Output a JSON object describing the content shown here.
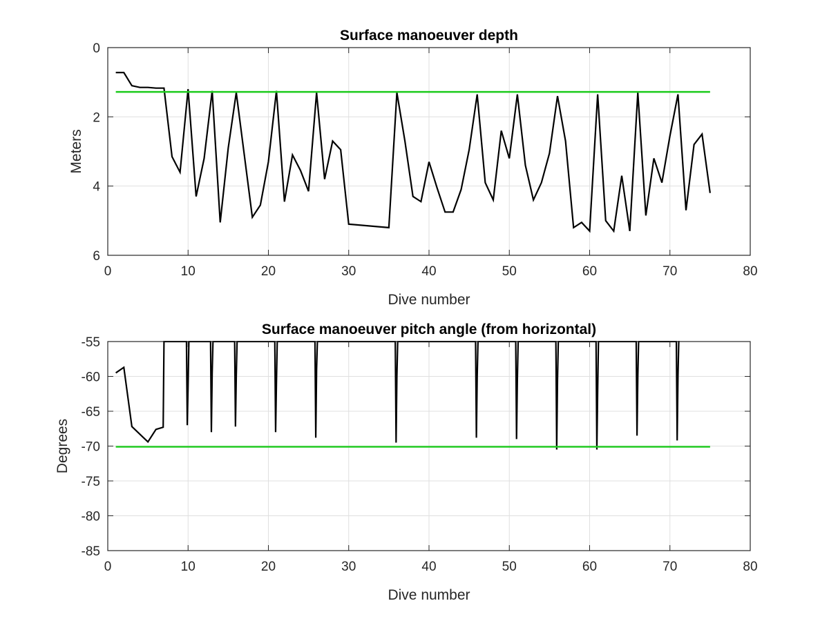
{
  "chart_data": [
    {
      "type": "line",
      "title": "Surface manoeuver depth",
      "xlabel": "Dive number",
      "ylabel": "Meters",
      "xlim": [
        0,
        80
      ],
      "ylim": [
        0,
        6
      ],
      "y_reversed": true,
      "grid": true,
      "xticks": [
        0,
        10,
        20,
        30,
        40,
        50,
        60,
        70,
        80
      ],
      "yticks": [
        0,
        2,
        4,
        6
      ],
      "series": [
        {
          "color": "#000000",
          "x": [
            1,
            2,
            3,
            4,
            5,
            6,
            7,
            8,
            9,
            10,
            11,
            12,
            13,
            14,
            15,
            16,
            17,
            18,
            19,
            20,
            21,
            22,
            23,
            24,
            25,
            26,
            27,
            28,
            29,
            30,
            35,
            36,
            37,
            38,
            39,
            40,
            41,
            42,
            43,
            44,
            45,
            46,
            47,
            48,
            49,
            50,
            51,
            52,
            53,
            54,
            55,
            56,
            57,
            58,
            59,
            60,
            61,
            62,
            63,
            64,
            65,
            66,
            67,
            68,
            69,
            70,
            71,
            72,
            73,
            74,
            75
          ],
          "y": [
            0.72,
            0.72,
            1.1,
            1.15,
            1.15,
            1.17,
            1.17,
            3.15,
            3.6,
            1.2,
            4.3,
            3.2,
            1.25,
            5.05,
            2.9,
            1.3,
            3.1,
            4.9,
            4.55,
            3.3,
            1.25,
            4.45,
            3.1,
            3.55,
            4.15,
            1.3,
            3.8,
            2.7,
            2.95,
            5.1,
            5.2,
            1.3,
            2.7,
            4.3,
            4.45,
            3.3,
            4.05,
            4.75,
            4.75,
            4.1,
            2.95,
            1.35,
            3.9,
            4.4,
            2.4,
            3.2,
            1.35,
            3.4,
            4.4,
            3.9,
            3.05,
            1.4,
            2.7,
            5.2,
            5.05,
            5.3,
            1.35,
            5.0,
            5.3,
            3.7,
            5.3,
            1.3,
            4.85,
            3.2,
            3.9,
            2.55,
            1.35,
            4.7,
            2.8,
            2.5,
            4.2
          ]
        },
        {
          "color": "#22cc22",
          "x": [
            1,
            75
          ],
          "y": [
            1.28,
            1.28
          ]
        }
      ]
    },
    {
      "type": "line",
      "title": "Surface manoeuver pitch angle (from horizontal)",
      "xlabel": "Dive number",
      "ylabel": "Degrees",
      "xlim": [
        0,
        80
      ],
      "ylim": [
        -85,
        -55
      ],
      "grid": true,
      "xticks": [
        0,
        10,
        20,
        30,
        40,
        50,
        60,
        70,
        80
      ],
      "yticks": [
        -55,
        -60,
        -65,
        -70,
        -75,
        -80,
        -85
      ],
      "series": [
        {
          "color": "#000000",
          "x": [
            1,
            2,
            3,
            4,
            5,
            6,
            6.9,
            7.0,
            7.1,
            9.8,
            9.9,
            10.0,
            10.1,
            10.2,
            12.8,
            12.9,
            13.0,
            13.1,
            13.2,
            15.8,
            15.9,
            16.0,
            16.1,
            16.2,
            20.8,
            20.9,
            21.0,
            21.1,
            21.2,
            25.8,
            25.9,
            26.0,
            26.1,
            26.2,
            35.8,
            35.9,
            36.0,
            36.1,
            36.2,
            45.8,
            45.9,
            46.0,
            46.1,
            46.2,
            50.8,
            50.9,
            51.0,
            51.1,
            51.2,
            55.8,
            55.9,
            56.0,
            56.1,
            56.2,
            60.8,
            60.9,
            61.0,
            61.1,
            61.2,
            65.8,
            65.9,
            66.0,
            66.1,
            66.2,
            70.8,
            70.9,
            71.0,
            71.1,
            71.2
          ],
          "y": [
            -59.5,
            -58.7,
            -67.2,
            -68.3,
            -69.4,
            -67.6,
            -67.3,
            -55,
            -55,
            -55,
            -67.0,
            -61.5,
            -55,
            -55,
            -55,
            -68.0,
            -59.5,
            -55,
            -55,
            -55,
            -67.2,
            -60.0,
            -55,
            -55,
            -55,
            -68.0,
            -61.0,
            -55,
            -55,
            -55,
            -68.8,
            -59.0,
            -55,
            -55,
            -55,
            -69.5,
            -60.0,
            -55,
            -55,
            -55,
            -68.8,
            -60.0,
            -55,
            -55,
            -55,
            -69.0,
            -60.5,
            -55,
            -55,
            -55,
            -70.5,
            -60.5,
            -55,
            -55,
            -55,
            -70.5,
            -62.0,
            -55,
            -55,
            -55,
            -68.5,
            -60.0,
            -55,
            -55,
            -55,
            -69.2,
            -60.0,
            -55,
            -55
          ]
        },
        {
          "color": "#22cc22",
          "x": [
            1,
            75
          ],
          "y": [
            -70.1,
            -70.1
          ]
        }
      ]
    }
  ]
}
